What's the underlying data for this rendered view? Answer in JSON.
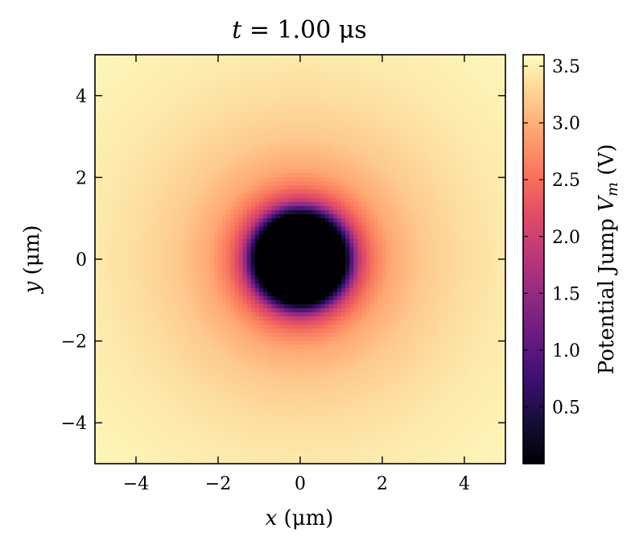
{
  "chart_data": {
    "type": "heatmap",
    "title": "t = 1.00 μs",
    "xlabel": "x (μm)",
    "ylabel": "y (μm)",
    "colorbar_label": "Potential Jump V_m (V)",
    "xlim": [
      -5,
      5
    ],
    "ylim": [
      -5,
      5
    ],
    "x_ticks": [
      -4,
      -2,
      0,
      2,
      4
    ],
    "y_ticks": [
      -4,
      -2,
      0,
      2,
      4
    ],
    "x_tick_labels": [
      "−4",
      "−2",
      "0",
      "2",
      "4"
    ],
    "y_tick_labels": [
      "−4",
      "−2",
      "0",
      "2",
      "4"
    ],
    "colorbar_range": [
      0.0,
      3.6
    ],
    "colorbar_ticks": [
      0.5,
      1.0,
      1.5,
      2.0,
      2.5,
      3.0,
      3.5
    ],
    "colorbar_tick_labels": [
      "0.5",
      "1.0",
      "1.5",
      "2.0",
      "2.5",
      "3.0",
      "3.5"
    ],
    "colormap": "magma",
    "field": {
      "description_radial_profile_um_to_V": true,
      "radius": [
        0.0,
        1.1,
        1.2,
        1.35,
        1.5,
        1.8,
        2.2,
        3.0,
        4.0,
        5.0,
        7.1
      ],
      "value": [
        0.0,
        0.0,
        0.6,
        1.5,
        2.1,
        2.6,
        2.95,
        3.2,
        3.35,
        3.45,
        3.55
      ]
    },
    "grid": false
  }
}
